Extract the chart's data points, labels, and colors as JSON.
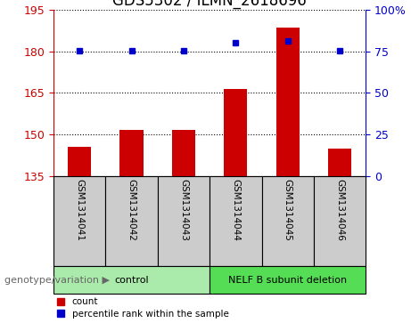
{
  "title": "GDS5302 / ILMN_2618696",
  "samples": [
    "GSM1314041",
    "GSM1314042",
    "GSM1314043",
    "GSM1314044",
    "GSM1314045",
    "GSM1314046"
  ],
  "counts": [
    145.5,
    151.5,
    151.5,
    166.5,
    188.5,
    145.0
  ],
  "percentile_ranks": [
    75.5,
    75.5,
    75.5,
    80.0,
    81.0,
    75.5
  ],
  "ylim_left": [
    135,
    195
  ],
  "ylim_right": [
    0,
    100
  ],
  "yticks_left": [
    135,
    150,
    165,
    180,
    195
  ],
  "yticks_right": [
    0,
    25,
    50,
    75,
    100
  ],
  "ytick_labels_right": [
    "0",
    "25",
    "50",
    "75",
    "100%"
  ],
  "bar_color": "#cc0000",
  "dot_color": "#0000cc",
  "bar_bottom": 135,
  "groups": [
    {
      "label": "control",
      "indices": [
        0,
        1,
        2
      ],
      "color": "#aaeaaa"
    },
    {
      "label": "NELF B subunit deletion",
      "indices": [
        3,
        4,
        5
      ],
      "color": "#55dd55"
    }
  ],
  "group_label_prefix": "genotype/variation",
  "legend_count_label": "count",
  "legend_pct_label": "percentile rank within the sample",
  "sample_box_color": "#cccccc",
  "title_fontsize": 12,
  "tick_fontsize": 9,
  "label_fontsize": 8
}
